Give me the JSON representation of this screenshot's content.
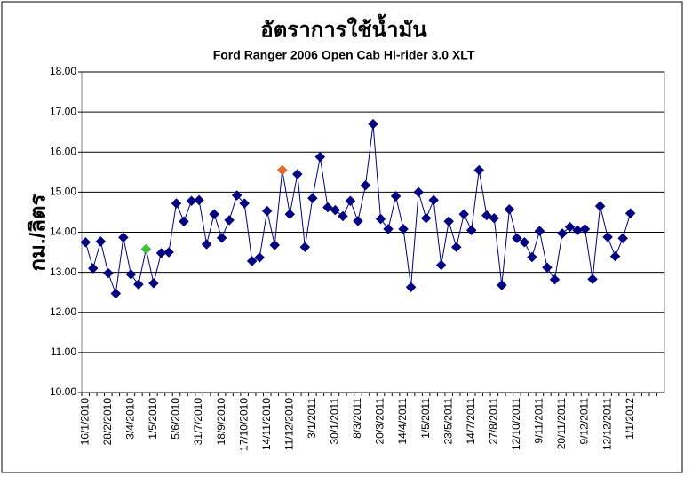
{
  "chart_data": {
    "type": "line",
    "title": "อัตราการใช้น้ำมัน",
    "subtitle": "Ford Ranger 2006 Open Cab Hi-rider 3.0 XLT",
    "y_label": "กม./ลิตร",
    "categories": [
      "16/1/2010",
      null,
      null,
      "28/2/2010",
      null,
      null,
      "3/4/2010",
      null,
      null,
      "1/5/2010",
      null,
      null,
      "5/6/2010",
      null,
      null,
      "31/7/2010",
      null,
      null,
      "18/9/2010",
      null,
      null,
      "17/10/2010",
      null,
      null,
      "14/11/2010",
      null,
      null,
      "11/12/2010",
      null,
      null,
      "3/1/2011",
      null,
      null,
      "30/1/2011",
      null,
      null,
      "8/3/2011",
      null,
      null,
      "20/3/2011",
      null,
      null,
      "14/4/2011",
      null,
      null,
      "1/5/2011",
      null,
      null,
      "23/5/2011",
      null,
      null,
      "14/7/2011",
      null,
      null,
      "27/8/2011",
      null,
      null,
      "12/10/2011",
      null,
      null,
      "9/11/2011",
      null,
      null,
      "20/11/2011",
      null,
      null,
      "9/12/2011",
      null,
      null,
      "12/12/2011",
      null,
      null,
      "1/1/2012",
      null,
      null,
      null,
      null
    ],
    "values": [
      13.75,
      13.1,
      13.77,
      12.98,
      12.47,
      13.87,
      12.95,
      12.7,
      13.58,
      12.73,
      13.48,
      13.5,
      14.72,
      14.27,
      14.78,
      14.8,
      13.7,
      14.45,
      13.86,
      14.3,
      14.92,
      14.72,
      13.28,
      13.37,
      14.53,
      13.68,
      15.55,
      14.45,
      15.45,
      13.63,
      14.85,
      15.88,
      14.62,
      14.55,
      14.4,
      14.78,
      14.28,
      15.17,
      16.7,
      14.33,
      14.08,
      14.9,
      14.08,
      12.63,
      15.0,
      14.35,
      14.8,
      13.18,
      14.27,
      13.63,
      14.45,
      14.05,
      15.55,
      14.42,
      14.35,
      12.68,
      14.57,
      13.85,
      13.75,
      13.38,
      14.03,
      13.12,
      12.82,
      13.97,
      14.13,
      14.05,
      14.08,
      12.83,
      14.65,
      13.88,
      13.4,
      13.85,
      14.47,
      null,
      null,
      null,
      null
    ],
    "color": "#000080",
    "highlights": [
      {
        "index": 8,
        "color": "#33cc33"
      },
      {
        "index": 26,
        "color": "#ee6622"
      }
    ],
    "ylim": [
      10,
      18
    ],
    "yticks": [
      {
        "value": 10,
        "label": "10.00"
      },
      {
        "value": 11,
        "label": "11.00"
      },
      {
        "value": 12,
        "label": "12.00"
      },
      {
        "value": 13,
        "label": "13.00"
      },
      {
        "value": 14,
        "label": "14.00"
      },
      {
        "value": 15,
        "label": "15.00"
      },
      {
        "value": 16,
        "label": "16.00"
      },
      {
        "value": 17,
        "label": "17.00"
      },
      {
        "value": 18,
        "label": "18.00"
      }
    ],
    "grid": true
  }
}
